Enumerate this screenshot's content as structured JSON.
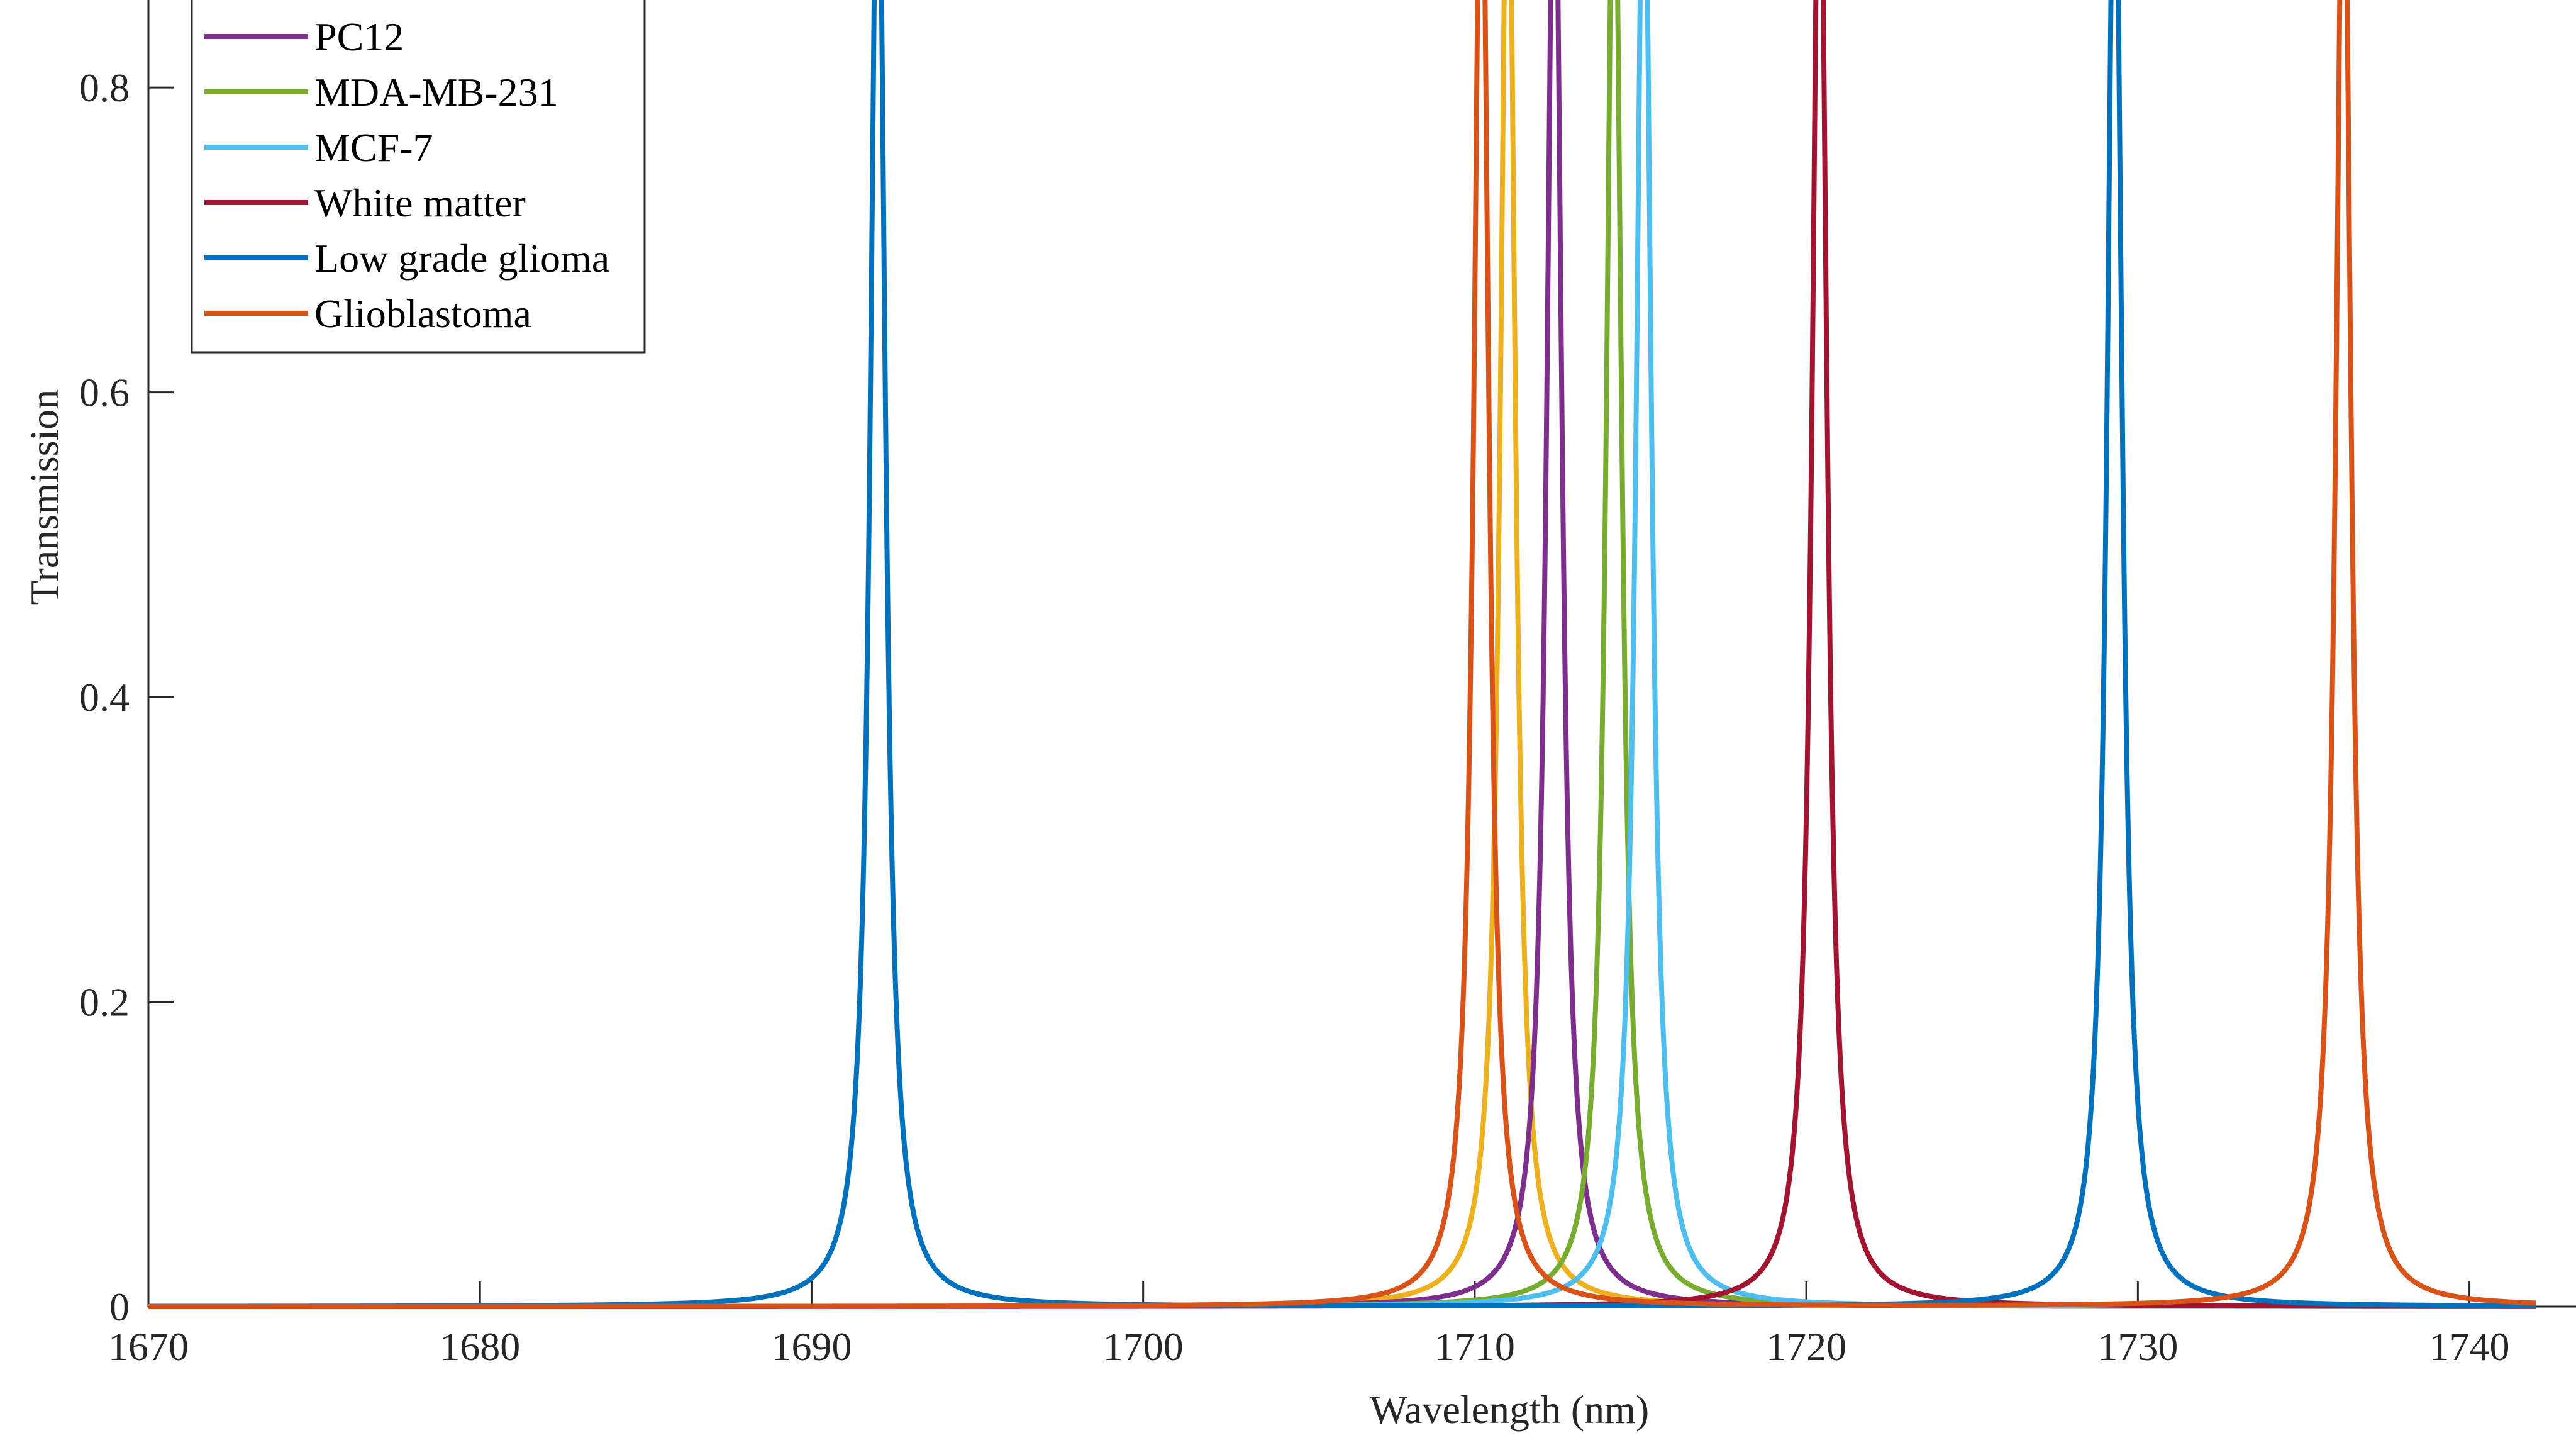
{
  "chart_data": {
    "type": "line",
    "title": "",
    "xlabel": "Wavelength (nm)",
    "ylabel": "Transmission",
    "xlim": [
      1670,
      1742
    ],
    "ylim": [
      0,
      0.85
    ],
    "x_ticks": [
      "1670",
      "1680",
      "1690",
      "1700",
      "1710",
      "1720",
      "1730",
      "1740"
    ],
    "y_ticks": [
      "0",
      "0.2",
      "0.4",
      "0.6",
      "0.8"
    ],
    "grid": false,
    "legend_position": "top-left",
    "series": [
      {
        "name": "",
        "color": "#EDB120",
        "peak_wavelength": 1711.0,
        "peak_transmission": 1.0,
        "fwhm": 0.55,
        "in_legend": false
      },
      {
        "name": "PC12",
        "color": "#7E2F8E",
        "peak_wavelength": 1712.4,
        "peak_transmission": 1.0,
        "fwhm": 0.55,
        "in_legend": true
      },
      {
        "name": "MDA-MB-231",
        "color": "#77AC30",
        "peak_wavelength": 1714.2,
        "peak_transmission": 1.0,
        "fwhm": 0.55,
        "in_legend": true
      },
      {
        "name": "MCF-7",
        "color": "#4DBEEE",
        "peak_wavelength": 1715.1,
        "peak_transmission": 1.0,
        "fwhm": 0.55,
        "in_legend": true
      },
      {
        "name": "White matter",
        "color": "#A2142F",
        "peak_wavelength": 1720.4,
        "peak_transmission": 1.0,
        "fwhm": 0.55,
        "in_legend": true
      },
      {
        "name": "Low grade glioma",
        "color": "#0072BD",
        "peak_wavelength": [
          1692.0,
          1729.3
        ],
        "peak_transmission": 1.0,
        "fwhm": 0.55,
        "in_legend": true
      },
      {
        "name": "Glioblastoma",
        "color": "#D95319",
        "peak_wavelength": [
          1710.2,
          1736.2
        ],
        "peak_transmission": 1.0,
        "fwhm": 0.55,
        "in_legend": true
      }
    ]
  }
}
